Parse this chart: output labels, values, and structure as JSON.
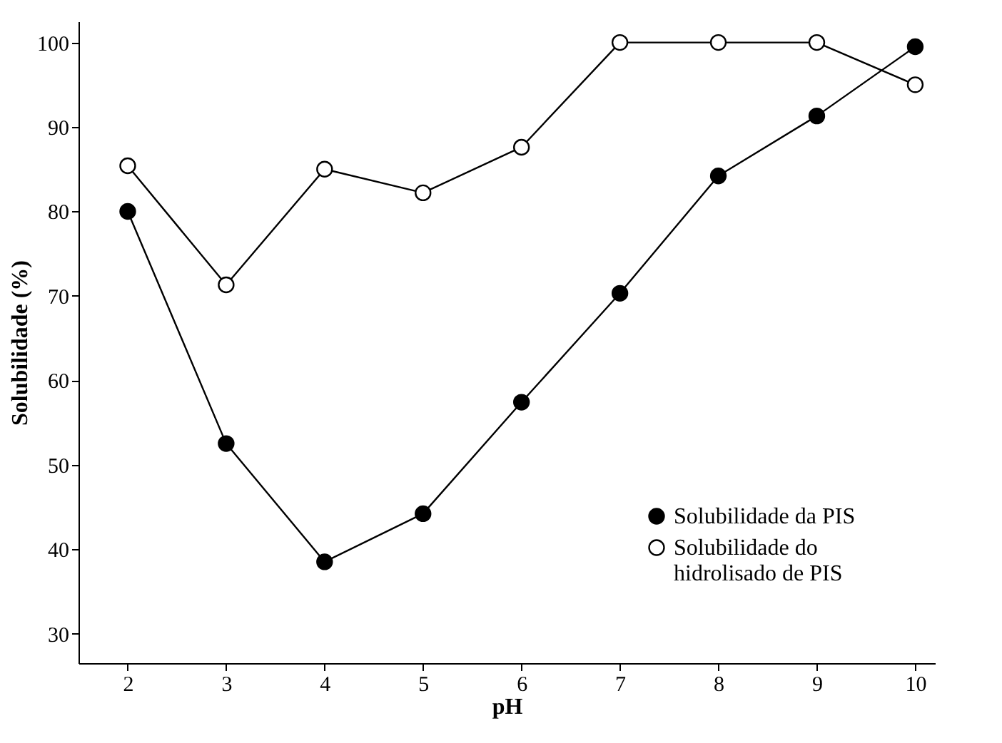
{
  "chart_data": {
    "type": "line",
    "xlabel": "pH",
    "ylabel": "Solubilidade (%)",
    "x": [
      2,
      3,
      4,
      5,
      6,
      7,
      8,
      9,
      10
    ],
    "series": [
      {
        "name": "Solubilidade da PIS",
        "color": "#000000",
        "values": [
          80,
          52.5,
          38.5,
          44.2,
          57.4,
          70.3,
          84.2,
          91.3,
          99.5
        ]
      },
      {
        "name": "Solubilidade do hidrolisado de PIS",
        "color": "#ffffff",
        "values": [
          85.4,
          71.3,
          85,
          82.2,
          87.6,
          100,
          100,
          100,
          95
        ]
      }
    ],
    "xlim": [
      1.5,
      10.2
    ],
    "ylim": [
      26.5,
      102.5
    ],
    "xticks": [
      2,
      3,
      4,
      5,
      6,
      7,
      8,
      9,
      10
    ],
    "yticks": [
      30,
      40,
      50,
      60,
      70,
      80,
      90,
      100
    ],
    "grid": false,
    "legend": "bottom right",
    "marker": "circle",
    "line_style": "solid"
  }
}
